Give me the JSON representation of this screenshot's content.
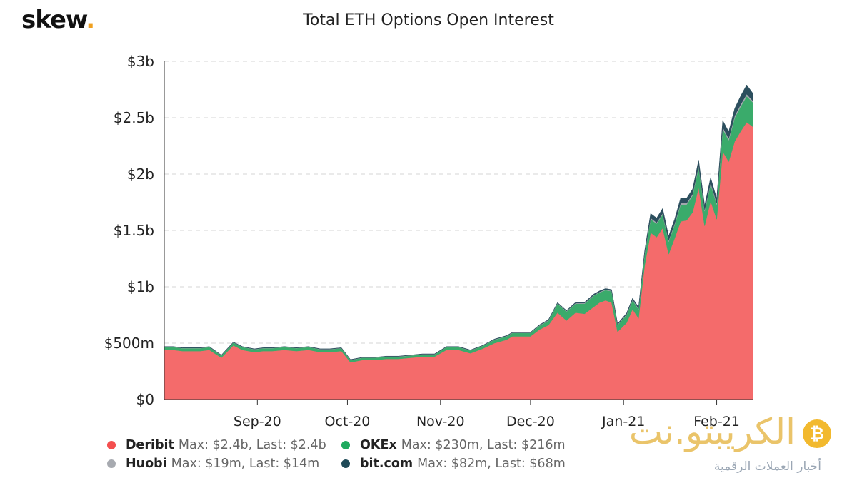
{
  "brand": {
    "name": "skew",
    "dot": "."
  },
  "chart_data": {
    "type": "area",
    "stacked": true,
    "title": "Total ETH Options Open Interest",
    "xlabel": "",
    "ylabel": "",
    "y_ticks": [
      "$0",
      "$500m",
      "$1b",
      "$1.5b",
      "$2b",
      "$2.5b",
      "$3b"
    ],
    "y_tick_values": [
      0,
      0.5,
      1,
      1.5,
      2,
      2.5,
      3
    ],
    "ylim": [
      0,
      3
    ],
    "y_unit": "billions USD",
    "x_ticks": [
      "Sep-20",
      "Oct-20",
      "Nov-20",
      "Dec-20",
      "Jan-21",
      "Feb-21"
    ],
    "x_tick_dates": [
      "2020-09-01",
      "2020-10-01",
      "2020-11-01",
      "2020-12-01",
      "2021-01-01",
      "2021-02-01"
    ],
    "xlim": [
      "2020-08-01",
      "2021-02-13"
    ],
    "grid": "horizontal-dashed",
    "legend_position": "bottom",
    "x": [
      "2020-08-01",
      "2020-08-04",
      "2020-08-07",
      "2020-08-10",
      "2020-08-13",
      "2020-08-16",
      "2020-08-20",
      "2020-08-24",
      "2020-08-27",
      "2020-08-31",
      "2020-09-03",
      "2020-09-06",
      "2020-09-10",
      "2020-09-14",
      "2020-09-18",
      "2020-09-22",
      "2020-09-25",
      "2020-09-29",
      "2020-10-02",
      "2020-10-06",
      "2020-10-10",
      "2020-10-14",
      "2020-10-18",
      "2020-10-22",
      "2020-10-26",
      "2020-10-30",
      "2020-11-03",
      "2020-11-07",
      "2020-11-11",
      "2020-11-15",
      "2020-11-19",
      "2020-11-23",
      "2020-11-25",
      "2020-11-28",
      "2020-12-01",
      "2020-12-04",
      "2020-12-07",
      "2020-12-10",
      "2020-12-13",
      "2020-12-16",
      "2020-12-19",
      "2020-12-22",
      "2020-12-24",
      "2020-12-26",
      "2020-12-28",
      "2020-12-30",
      "2021-01-02",
      "2021-01-04",
      "2021-01-06",
      "2021-01-08",
      "2021-01-10",
      "2021-01-12",
      "2021-01-14",
      "2021-01-16",
      "2021-01-18",
      "2021-01-20",
      "2021-01-22",
      "2021-01-24",
      "2021-01-26",
      "2021-01-28",
      "2021-01-30",
      "2021-02-01",
      "2021-02-03",
      "2021-02-05",
      "2021-02-07",
      "2021-02-09",
      "2021-02-11",
      "2021-02-13"
    ],
    "series": [
      {
        "name": "Deribit",
        "color": "#f46b6b",
        "values": [
          0.44,
          0.44,
          0.43,
          0.43,
          0.43,
          0.44,
          0.37,
          0.48,
          0.44,
          0.42,
          0.43,
          0.43,
          0.44,
          0.43,
          0.44,
          0.42,
          0.42,
          0.43,
          0.33,
          0.35,
          0.35,
          0.36,
          0.36,
          0.37,
          0.38,
          0.38,
          0.44,
          0.44,
          0.41,
          0.45,
          0.5,
          0.53,
          0.56,
          0.56,
          0.56,
          0.62,
          0.66,
          0.77,
          0.7,
          0.77,
          0.76,
          0.82,
          0.86,
          0.88,
          0.86,
          0.6,
          0.68,
          0.8,
          0.72,
          1.19,
          1.48,
          1.44,
          1.52,
          1.29,
          1.43,
          1.58,
          1.59,
          1.66,
          1.88,
          1.54,
          1.76,
          1.6,
          2.2,
          2.11,
          2.29,
          2.38,
          2.46,
          2.42
        ]
      },
      {
        "name": "OKEx",
        "color": "#3aab6b",
        "values": [
          0.025,
          0.025,
          0.025,
          0.025,
          0.025,
          0.025,
          0.02,
          0.025,
          0.025,
          0.025,
          0.025,
          0.025,
          0.025,
          0.025,
          0.025,
          0.025,
          0.025,
          0.025,
          0.02,
          0.02,
          0.02,
          0.02,
          0.02,
          0.02,
          0.02,
          0.02,
          0.025,
          0.025,
          0.025,
          0.025,
          0.03,
          0.03,
          0.03,
          0.03,
          0.03,
          0.035,
          0.04,
          0.08,
          0.08,
          0.08,
          0.09,
          0.1,
          0.09,
          0.09,
          0.1,
          0.06,
          0.07,
          0.08,
          0.08,
          0.1,
          0.12,
          0.12,
          0.12,
          0.11,
          0.12,
          0.15,
          0.14,
          0.15,
          0.18,
          0.13,
          0.15,
          0.13,
          0.2,
          0.19,
          0.21,
          0.22,
          0.23,
          0.216
        ]
      },
      {
        "name": "Huobi",
        "color": "#a7aab0",
        "values": [
          0.002,
          0.002,
          0.002,
          0.002,
          0.002,
          0.002,
          0.002,
          0.002,
          0.002,
          0.002,
          0.002,
          0.002,
          0.002,
          0.002,
          0.002,
          0.002,
          0.002,
          0.002,
          0.002,
          0.002,
          0.002,
          0.002,
          0.002,
          0.002,
          0.002,
          0.002,
          0.002,
          0.002,
          0.002,
          0.002,
          0.003,
          0.003,
          0.003,
          0.003,
          0.003,
          0.003,
          0.004,
          0.004,
          0.004,
          0.005,
          0.005,
          0.005,
          0.005,
          0.005,
          0.005,
          0.005,
          0.006,
          0.007,
          0.007,
          0.009,
          0.01,
          0.01,
          0.01,
          0.01,
          0.01,
          0.012,
          0.012,
          0.012,
          0.014,
          0.012,
          0.014,
          0.013,
          0.016,
          0.016,
          0.017,
          0.018,
          0.019,
          0.014
        ]
      },
      {
        "name": "bit.com",
        "color": "#2c4f5e",
        "values": [
          0.003,
          0.003,
          0.003,
          0.003,
          0.003,
          0.003,
          0.003,
          0.003,
          0.003,
          0.003,
          0.003,
          0.003,
          0.003,
          0.003,
          0.003,
          0.003,
          0.003,
          0.003,
          0.003,
          0.003,
          0.003,
          0.003,
          0.003,
          0.003,
          0.003,
          0.003,
          0.003,
          0.003,
          0.003,
          0.003,
          0.004,
          0.004,
          0.004,
          0.004,
          0.004,
          0.005,
          0.005,
          0.006,
          0.006,
          0.007,
          0.008,
          0.009,
          0.009,
          0.01,
          0.01,
          0.008,
          0.01,
          0.012,
          0.012,
          0.02,
          0.04,
          0.04,
          0.045,
          0.04,
          0.04,
          0.045,
          0.045,
          0.045,
          0.05,
          0.04,
          0.045,
          0.04,
          0.06,
          0.06,
          0.065,
          0.075,
          0.082,
          0.068
        ]
      }
    ]
  },
  "legend": [
    {
      "name": "Deribit",
      "stats": "Max: $2.4b, Last: $2.4b",
      "color": "#f44f4f"
    },
    {
      "name": "OKEx",
      "stats": "Max: $230m, Last: $216m",
      "color": "#1faa5e"
    },
    {
      "name": "Huobi",
      "stats": "Max: $19m, Last: $14m",
      "color": "#a7aab0"
    },
    {
      "name": "bit.com",
      "stats": "Max: $82m, Last: $68m",
      "color": "#1e4a57"
    }
  ],
  "watermark": {
    "name": "الكريبتو.نت",
    "tagline": "أخبار العملات الرقمية",
    "coin_symbol": "₿"
  }
}
